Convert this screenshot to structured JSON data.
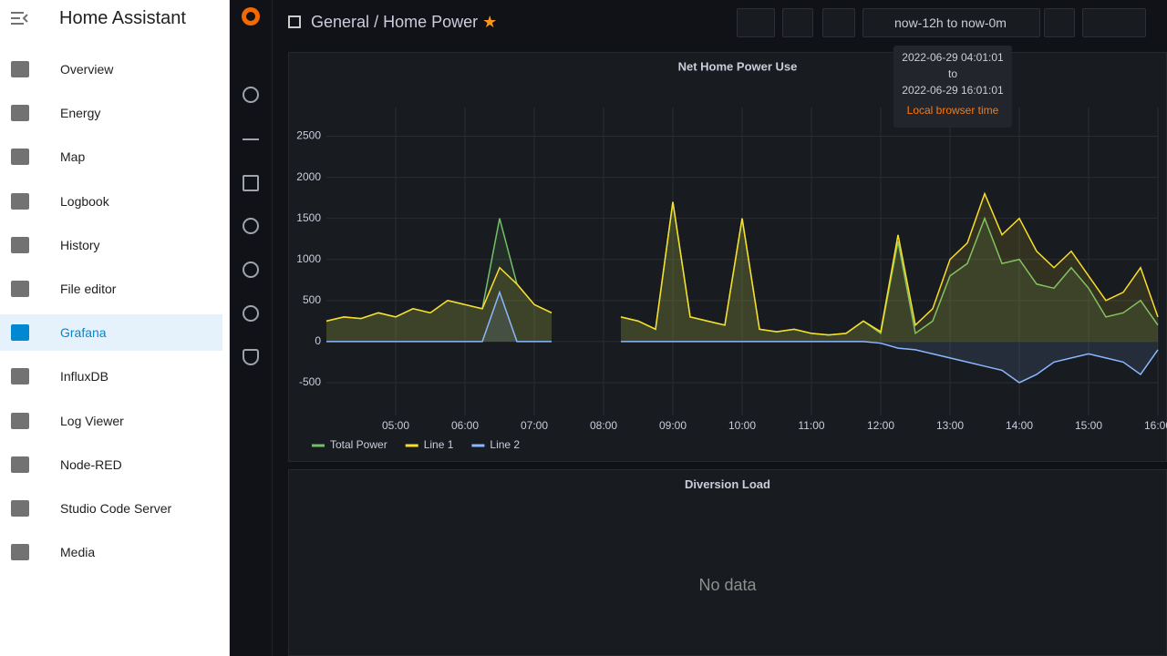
{
  "sidebar": {
    "title": "Home Assistant",
    "items": [
      "Overview",
      "Energy",
      "Map",
      "Logbook",
      "History",
      "File editor",
      "Grafana",
      "InfluxDB",
      "Log Viewer",
      "Node-RED",
      "Studio Code Server",
      "Media"
    ],
    "active": 6
  },
  "header": {
    "folder": "General",
    "separator": "/",
    "dashboard": "Home Power",
    "time_range": "now-12h to now-0m"
  },
  "tooltip": {
    "from": "2022-06-29 04:01:01",
    "to_word": "to",
    "to": "2022-06-29 16:01:01",
    "zone": "Local browser time"
  },
  "chart_data": {
    "type": "line",
    "title": "Net Home Power Use",
    "x": [
      4,
      4.25,
      4.5,
      4.75,
      5,
      5.25,
      5.5,
      5.75,
      6,
      6.25,
      6.5,
      6.75,
      7,
      7.25,
      7.5,
      7.75,
      8,
      8.25,
      8.5,
      8.75,
      9,
      9.25,
      9.5,
      9.75,
      10,
      10.25,
      10.5,
      10.75,
      11,
      11.25,
      11.5,
      11.75,
      12,
      12.25,
      12.5,
      12.75,
      13,
      13.25,
      13.5,
      13.75,
      14,
      14.25,
      14.5,
      14.75,
      15,
      15.25,
      15.5,
      15.75,
      16
    ],
    "series": [
      {
        "name": "Total Power",
        "color": "#73bf69",
        "values": [
          250,
          300,
          280,
          350,
          300,
          400,
          350,
          500,
          450,
          400,
          1500,
          700,
          450,
          350,
          null,
          null,
          null,
          300,
          250,
          150,
          1700,
          300,
          250,
          200,
          1500,
          150,
          120,
          150,
          100,
          80,
          100,
          250,
          100,
          1220,
          100,
          250,
          800,
          950,
          1500,
          950,
          1000,
          700,
          650,
          900,
          650,
          300,
          350,
          500,
          200
        ]
      },
      {
        "name": "Line 1",
        "color": "#fade2a",
        "values": [
          250,
          300,
          280,
          350,
          300,
          400,
          350,
          500,
          450,
          400,
          900,
          700,
          450,
          350,
          null,
          null,
          null,
          300,
          250,
          150,
          1700,
          300,
          250,
          200,
          1500,
          150,
          120,
          150,
          100,
          80,
          100,
          250,
          120,
          1300,
          200,
          400,
          1000,
          1200,
          1800,
          1300,
          1500,
          1100,
          900,
          1100,
          800,
          500,
          600,
          900,
          300
        ]
      },
      {
        "name": "Line 2",
        "color": "#8ab8ff",
        "values": [
          0,
          0,
          0,
          0,
          0,
          0,
          0,
          0,
          0,
          0,
          600,
          0,
          0,
          0,
          null,
          null,
          null,
          0,
          0,
          0,
          0,
          0,
          0,
          0,
          0,
          0,
          0,
          0,
          0,
          0,
          0,
          0,
          -20,
          -80,
          -100,
          -150,
          -200,
          -250,
          -300,
          -350,
          -500,
          -400,
          -250,
          -200,
          -150,
          -200,
          -250,
          -400,
          -100
        ]
      }
    ],
    "xlim": [
      4,
      16
    ],
    "xticks": [
      {
        "value": 5,
        "label": "05:00"
      },
      {
        "value": 6,
        "label": "06:00"
      },
      {
        "value": 7,
        "label": "07:00"
      },
      {
        "value": 8,
        "label": "08:00"
      },
      {
        "value": 9,
        "label": "09:00"
      },
      {
        "value": 10,
        "label": "10:00"
      },
      {
        "value": 11,
        "label": "11:00"
      },
      {
        "value": 12,
        "label": "12:00"
      },
      {
        "value": 13,
        "label": "13:00"
      },
      {
        "value": 14,
        "label": "14:00"
      },
      {
        "value": 15,
        "label": "15:00"
      },
      {
        "value": 16,
        "label": "16:00"
      }
    ],
    "ylim": [
      -900,
      2850
    ],
    "yticks": [
      -500,
      0,
      500,
      1000,
      1500,
      2000,
      2500
    ],
    "grid": true
  },
  "panel2": {
    "title": "Diversion Load",
    "message": "No data"
  }
}
